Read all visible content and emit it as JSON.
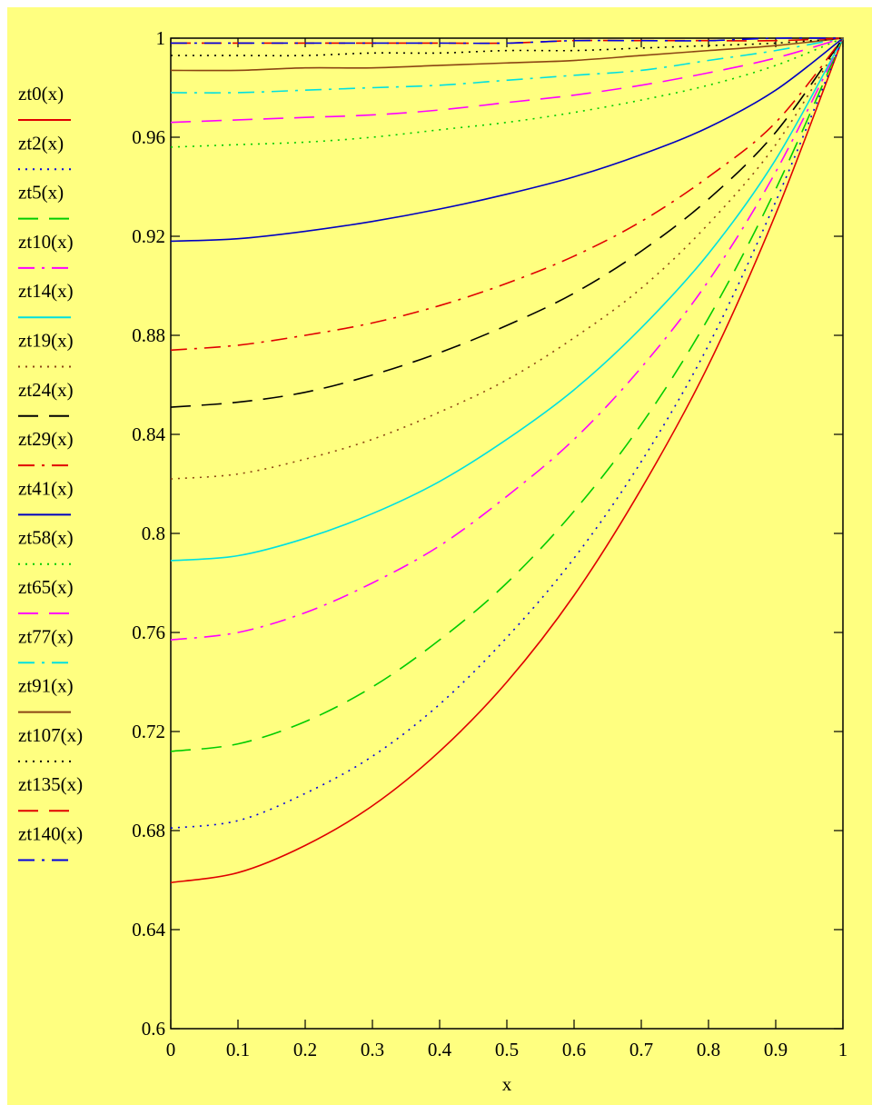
{
  "chart_data": {
    "type": "line",
    "xlabel": "x",
    "ylabel": "",
    "xlim": [
      0,
      1
    ],
    "ylim": [
      0.6,
      1
    ],
    "grid": false,
    "legend_placement": "left",
    "background_color": "#ffff80",
    "x_ticks": [
      0,
      0.1,
      0.2,
      0.3,
      0.4,
      0.5,
      0.6,
      0.7,
      0.8,
      0.9,
      1
    ],
    "x_tick_labels": [
      "0",
      "0.1",
      "0.2",
      "0.3",
      "0.4",
      "0.5",
      "0.6",
      "0.7",
      "0.8",
      "0.9",
      "1"
    ],
    "y_ticks": [
      0.6,
      0.64,
      0.68,
      0.72,
      0.76,
      0.8,
      0.84,
      0.88,
      0.92,
      0.96,
      1
    ],
    "y_tick_labels": [
      "0.6",
      "0.64",
      "0.68",
      "0.72",
      "0.76",
      "0.8",
      "0.84",
      "0.88",
      "0.92",
      "0.96",
      "1"
    ],
    "x": [
      0,
      0.1,
      0.2,
      0.3,
      0.4,
      0.5,
      0.6,
      0.7,
      0.8,
      0.9,
      1
    ],
    "series": [
      {
        "name": "zt0(x)",
        "color": "#e00000",
        "dash": "solid",
        "values": [
          0.659,
          0.663,
          0.674,
          0.69,
          0.712,
          0.74,
          0.775,
          0.818,
          0.868,
          0.929,
          1.0
        ]
      },
      {
        "name": "zt2(x)",
        "color": "#0000e0",
        "dash": "dot",
        "values": [
          0.681,
          0.684,
          0.695,
          0.71,
          0.731,
          0.758,
          0.79,
          0.829,
          0.876,
          0.934,
          1.0
        ]
      },
      {
        "name": "zt5(x)",
        "color": "#00cc00",
        "dash": "dash",
        "values": [
          0.712,
          0.715,
          0.724,
          0.738,
          0.757,
          0.78,
          0.809,
          0.844,
          0.887,
          0.939,
          1.0
        ]
      },
      {
        "name": "zt10(x)",
        "color": "#ff00ff",
        "dash": "dashdot",
        "values": [
          0.757,
          0.76,
          0.768,
          0.78,
          0.795,
          0.815,
          0.838,
          0.867,
          0.902,
          0.946,
          1.0
        ]
      },
      {
        "name": "zt14(x)",
        "color": "#00e0e0",
        "dash": "solid",
        "values": [
          0.789,
          0.791,
          0.798,
          0.808,
          0.821,
          0.838,
          0.858,
          0.883,
          0.913,
          0.951,
          1.0
        ]
      },
      {
        "name": "zt19(x)",
        "color": "#8b4513",
        "dash": "dot",
        "values": [
          0.822,
          0.824,
          0.83,
          0.838,
          0.849,
          0.862,
          0.879,
          0.899,
          0.925,
          0.957,
          1.0
        ]
      },
      {
        "name": "zt24(x)",
        "color": "#000000",
        "dash": "dash",
        "values": [
          0.851,
          0.853,
          0.857,
          0.864,
          0.873,
          0.884,
          0.897,
          0.914,
          0.935,
          0.962,
          1.0
        ]
      },
      {
        "name": "zt29(x)",
        "color": "#e00000",
        "dash": "dashdot",
        "values": [
          0.874,
          0.876,
          0.88,
          0.885,
          0.892,
          0.901,
          0.912,
          0.926,
          0.944,
          0.966,
          1.0
        ]
      },
      {
        "name": "zt41(x)",
        "color": "#0000c0",
        "dash": "solid",
        "values": [
          0.918,
          0.919,
          0.922,
          0.926,
          0.931,
          0.937,
          0.944,
          0.953,
          0.964,
          0.979,
          1.0
        ]
      },
      {
        "name": "zt58(x)",
        "color": "#00cc00",
        "dash": "dot",
        "values": [
          0.956,
          0.957,
          0.958,
          0.96,
          0.963,
          0.966,
          0.97,
          0.975,
          0.981,
          0.989,
          1.0
        ]
      },
      {
        "name": "zt65(x)",
        "color": "#ff00ff",
        "dash": "dash",
        "values": [
          0.966,
          0.967,
          0.968,
          0.969,
          0.971,
          0.974,
          0.977,
          0.981,
          0.986,
          0.992,
          1.0
        ]
      },
      {
        "name": "zt77(x)",
        "color": "#00e0e0",
        "dash": "dashdot",
        "values": [
          0.978,
          0.978,
          0.979,
          0.98,
          0.981,
          0.983,
          0.985,
          0.987,
          0.991,
          0.995,
          1.0
        ]
      },
      {
        "name": "zt91(x)",
        "color": "#8b4513",
        "dash": "solid",
        "values": [
          0.987,
          0.987,
          0.988,
          0.988,
          0.989,
          0.99,
          0.991,
          0.993,
          0.995,
          0.997,
          1.0
        ]
      },
      {
        "name": "zt107(x)",
        "color": "#000000",
        "dash": "dot",
        "values": [
          0.993,
          0.993,
          0.993,
          0.994,
          0.994,
          0.995,
          0.995,
          0.996,
          0.997,
          0.998,
          1.0
        ]
      },
      {
        "name": "zt135(x)",
        "color": "#e00000",
        "dash": "dash",
        "values": [
          0.998,
          0.998,
          0.998,
          0.998,
          0.998,
          0.998,
          0.999,
          0.999,
          0.999,
          0.999,
          1.0
        ]
      },
      {
        "name": "zt140(x)",
        "color": "#0000e0",
        "dash": "dashdot",
        "values": [
          0.998,
          0.998,
          0.998,
          0.998,
          0.998,
          0.998,
          0.999,
          0.999,
          0.999,
          1.0,
          1.0
        ]
      }
    ]
  }
}
